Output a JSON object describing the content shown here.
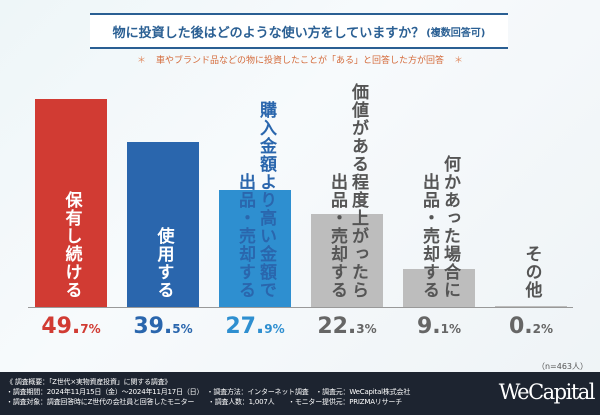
{
  "chart_data": {
    "type": "bar",
    "title": "物に投資した後はどのような使い方をしていますか？",
    "title_note": "(複数回答可)",
    "subtitle": "車やブランド品などの物に投資したことが「ある」と回答した方が回答",
    "subtitle_marker": "＊",
    "categories": [
      [
        "保有し続ける"
      ],
      [
        "使用する"
      ],
      [
        "購入金額より高い金額で",
        "出品・売却する"
      ],
      [
        "価値がある程度上がったら",
        "出品・売却する"
      ],
      [
        "何かあった場合に",
        "出品・売却する"
      ],
      [
        "その他"
      ]
    ],
    "values": [
      49.7,
      39.5,
      27.9,
      22.3,
      9.1,
      0.2
    ],
    "value_labels": [
      [
        "49.",
        "7%"
      ],
      [
        "39.",
        "5%"
      ],
      [
        "27.",
        "9%"
      ],
      [
        "22.",
        "3%"
      ],
      [
        "9.",
        "1%"
      ],
      [
        "0.",
        "2%"
      ]
    ],
    "colors": [
      "#d13b33",
      "#2a66ad",
      "#2e8fd0",
      "#bdbdbd",
      "#bdbdbd",
      "#bdbdbd"
    ],
    "label_colors": [
      "#ffffff",
      "#ffffff",
      "#2a66ad",
      "#555555",
      "#555555",
      "#555555"
    ],
    "pct_colors": [
      "#d13b33",
      "#2a66ad",
      "#2e8fd0",
      "#666666",
      "#666666",
      "#666666"
    ],
    "ylim": [
      0,
      50
    ],
    "sample": "（n=463人）"
  },
  "footer": {
    "lines": [
      "《 調査概要：「Z世代×実物資産投資」に関する調査》",
      "・調査期間：2024年11月15日（金）〜2024年11月17日（日）　・調査方法：インターネット調査　・調査元：WeCapital株式会社",
      "・調査対象：調査回答時にZ世代の会社員と回答したモニター　　・調査人数：1,007人　　・モニター提供元：PRIZMAリサーチ"
    ],
    "logo": "WeCapital"
  }
}
